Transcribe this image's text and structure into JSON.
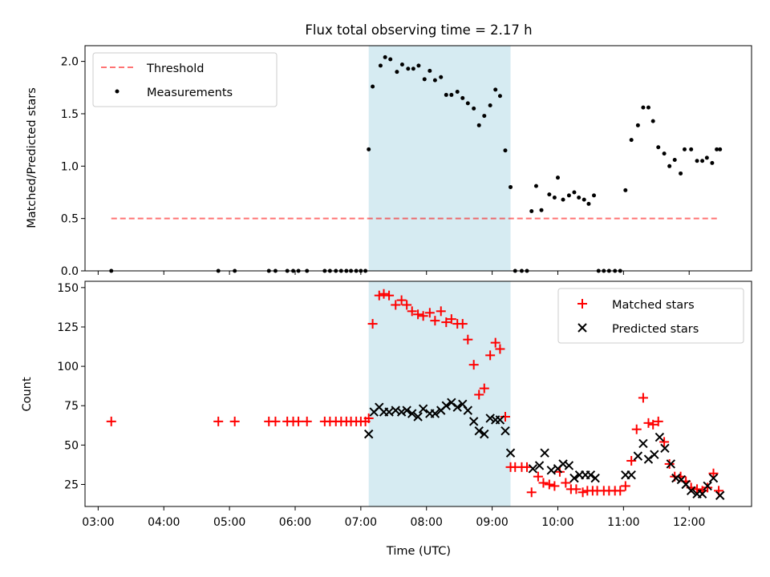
{
  "title": "Flux total observing time = 2.17 h",
  "colors": {
    "highlight": "#add8e6",
    "threshold": "#ff0000",
    "measurement": "#000000",
    "matched": "#ff0000",
    "predicted": "#000000"
  },
  "chart_data": [
    {
      "type": "scatter",
      "ylabel": "Matched/Predicted stars",
      "ylim": [
        0,
        2.15
      ],
      "yticks": [
        0.0,
        0.5,
        1.0,
        1.5,
        2.0
      ],
      "ytick_labels": [
        "0.0",
        "0.5",
        "1.0",
        "1.5",
        "2.0"
      ],
      "xlim": [
        2.8,
        12.95
      ],
      "legend": {
        "placement": "top-left",
        "entries": [
          "Threshold",
          "Measurements"
        ]
      },
      "highlight_span": [
        7.12,
        9.28
      ],
      "threshold": {
        "name": "Threshold",
        "y": 0.5,
        "x": [
          3.2,
          12.47
        ],
        "style": "dashed"
      },
      "series": [
        {
          "name": "Measurements",
          "marker": "dot",
          "x": [
            3.2,
            4.83,
            5.08,
            5.6,
            5.7,
            5.88,
            5.97,
            6.05,
            6.18,
            6.45,
            6.53,
            6.62,
            6.7,
            6.78,
            6.85,
            6.93,
            7.0,
            7.07,
            7.12,
            7.18,
            7.3,
            7.37,
            7.45,
            7.55,
            7.63,
            7.72,
            7.8,
            7.88,
            7.97,
            8.05,
            8.13,
            8.22,
            8.3,
            8.38,
            8.47,
            8.55,
            8.63,
            8.72,
            8.8,
            8.88,
            8.97,
            9.05,
            9.12,
            9.2,
            9.28,
            9.35,
            9.45,
            9.53,
            9.6,
            9.67,
            9.75,
            9.87,
            9.95,
            10.0,
            10.08,
            10.17,
            10.25,
            10.32,
            10.4,
            10.47,
            10.55,
            10.62,
            10.7,
            10.78,
            10.87,
            10.95,
            11.03,
            11.12,
            11.22,
            11.3,
            11.38,
            11.45,
            11.53,
            11.62,
            11.7,
            11.78,
            11.87,
            11.93,
            12.03,
            12.12,
            12.2,
            12.27,
            12.35,
            12.42,
            12.47
          ],
          "y": [
            0.0,
            0.0,
            0.0,
            0.0,
            0.0,
            0.0,
            0.0,
            0.0,
            0.0,
            0.0,
            0.0,
            0.0,
            0.0,
            0.0,
            0.0,
            0.0,
            0.0,
            0.0,
            1.16,
            1.76,
            1.96,
            2.04,
            2.02,
            1.9,
            1.97,
            1.93,
            1.93,
            1.96,
            1.83,
            1.91,
            1.82,
            1.85,
            1.68,
            1.68,
            1.71,
            1.65,
            1.6,
            1.55,
            1.39,
            1.48,
            1.58,
            1.73,
            1.67,
            1.15,
            0.8,
            0.0,
            0.0,
            0.0,
            0.57,
            0.81,
            0.58,
            0.73,
            0.7,
            0.89,
            0.68,
            0.72,
            0.75,
            0.7,
            0.68,
            0.64,
            0.72,
            0.0,
            0.0,
            0.0,
            0.0,
            0.0,
            0.77,
            1.25,
            1.39,
            1.56,
            1.56,
            1.43,
            1.18,
            1.12,
            1.0,
            1.06,
            0.93,
            1.16,
            1.16,
            1.05,
            1.05,
            1.08,
            1.03,
            1.16,
            1.16
          ]
        }
      ]
    },
    {
      "type": "scatter",
      "ylabel": "Count",
      "xlabel": "Time (UTC)",
      "ylim": [
        11,
        154
      ],
      "yticks": [
        25,
        50,
        75,
        100,
        125,
        150
      ],
      "ytick_labels": [
        "25",
        "50",
        "75",
        "100",
        "125",
        "150"
      ],
      "xlim": [
        2.8,
        12.95
      ],
      "xticks": [
        3,
        4,
        5,
        6,
        7,
        8,
        9,
        10,
        11,
        12
      ],
      "xtick_labels": [
        "03:00",
        "04:00",
        "05:00",
        "06:00",
        "07:00",
        "08:00",
        "09:00",
        "10:00",
        "11:00",
        "12:00"
      ],
      "legend": {
        "placement": "top-right",
        "entries": [
          "Matched stars",
          "Predicted stars"
        ]
      },
      "highlight_span": [
        7.12,
        9.28
      ],
      "series": [
        {
          "name": "Matched stars",
          "marker": "plus",
          "x": [
            3.2,
            4.83,
            5.08,
            5.6,
            5.7,
            5.88,
            5.97,
            6.05,
            6.18,
            6.45,
            6.53,
            6.62,
            6.7,
            6.78,
            6.85,
            6.93,
            7.0,
            7.07,
            7.12,
            7.18,
            7.28,
            7.35,
            7.43,
            7.53,
            7.62,
            7.7,
            7.78,
            7.87,
            7.95,
            8.05,
            8.13,
            8.22,
            8.3,
            8.38,
            8.47,
            8.55,
            8.63,
            8.72,
            8.8,
            8.88,
            8.97,
            9.05,
            9.12,
            9.2,
            9.28,
            9.35,
            9.45,
            9.53,
            9.6,
            9.7,
            9.78,
            9.87,
            9.95,
            10.03,
            10.12,
            10.2,
            10.28,
            10.38,
            10.45,
            10.53,
            10.6,
            10.7,
            10.78,
            10.87,
            10.95,
            11.03,
            11.12,
            11.2,
            11.3,
            11.38,
            11.45,
            11.53,
            11.62,
            11.7,
            11.78,
            11.87,
            11.95,
            12.03,
            12.12,
            12.2,
            12.28,
            12.37,
            12.45
          ],
          "y": [
            65,
            65,
            65,
            65,
            65,
            65,
            65,
            65,
            65,
            65,
            65,
            65,
            65,
            65,
            65,
            65,
            65,
            65,
            67,
            127,
            145,
            146,
            145,
            139,
            142,
            139,
            135,
            133,
            132,
            134,
            129,
            135,
            128,
            130,
            127,
            127,
            117,
            101,
            82,
            86,
            107,
            115,
            111,
            68,
            36,
            36,
            36,
            36,
            20,
            30,
            26,
            25,
            24,
            33,
            26,
            22,
            22,
            20,
            21,
            21,
            21,
            21,
            21,
            21,
            21,
            24,
            40,
            60,
            80,
            64,
            63,
            65,
            52,
            38,
            30,
            30,
            27,
            23,
            22,
            21,
            23,
            32,
            21
          ]
        },
        {
          "name": "Predicted stars",
          "marker": "x",
          "x": [
            7.12,
            7.2,
            7.28,
            7.35,
            7.43,
            7.53,
            7.62,
            7.7,
            7.78,
            7.87,
            7.95,
            8.05,
            8.13,
            8.22,
            8.3,
            8.38,
            8.47,
            8.55,
            8.63,
            8.72,
            8.8,
            8.88,
            8.97,
            9.05,
            9.12,
            9.2,
            9.28,
            9.62,
            9.72,
            9.8,
            9.9,
            10.0,
            10.08,
            10.17,
            10.25,
            10.33,
            10.42,
            10.5,
            10.57,
            11.03,
            11.12,
            11.22,
            11.3,
            11.38,
            11.47,
            11.55,
            11.63,
            11.72,
            11.8,
            11.88,
            11.95,
            12.03,
            12.12,
            12.2,
            12.28,
            12.37,
            12.47
          ],
          "y": [
            57,
            71,
            74,
            71,
            71,
            72,
            71,
            72,
            70,
            68,
            73,
            70,
            70,
            72,
            75,
            77,
            74,
            76,
            72,
            65,
            59,
            57,
            67,
            66,
            66,
            59,
            45,
            35,
            37,
            45,
            34,
            35,
            38,
            37,
            29,
            31,
            31,
            31,
            29,
            31,
            31,
            43,
            51,
            41,
            44,
            55,
            48,
            38,
            29,
            28,
            25,
            21,
            19,
            19,
            24,
            29,
            18
          ]
        }
      ]
    }
  ]
}
